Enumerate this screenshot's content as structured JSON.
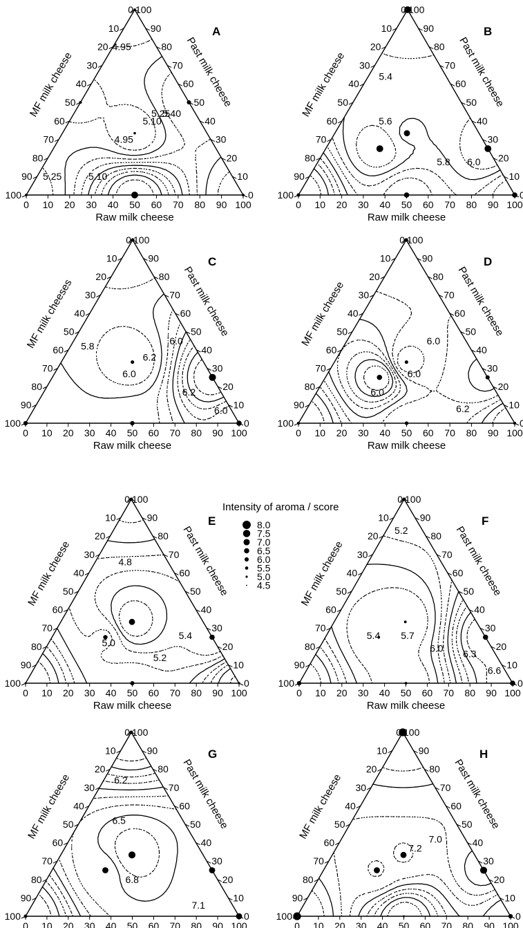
{
  "figure": {
    "legend": {
      "title": "Intensity of aroma / score",
      "entries": [
        "8.0",
        "7.5",
        "7.0",
        "6.5",
        "6.0",
        "5.5",
        "5.0",
        "4.5"
      ]
    }
  },
  "chart_data": [
    {
      "type": "ternary-contour",
      "label": "A",
      "left_axis": "MF milk cheese",
      "right_axis": "Past milk cheese",
      "bottom_axis": "Raw milk cheese",
      "ticks": [
        "0",
        "10",
        "20",
        "30",
        "40",
        "50",
        "60",
        "70",
        "80",
        "90",
        "100"
      ],
      "contour_labels": [
        "5.25",
        "5.10",
        "4.95",
        "4.95",
        "5.10",
        "5.25",
        "5.40"
      ],
      "design_points": [
        {
          "raw": 50,
          "mf": 0,
          "past": 50,
          "score": 5.9
        },
        {
          "raw": 50,
          "mf": 50,
          "past": 0,
          "score": 7.4
        },
        {
          "raw": 0,
          "mf": 50,
          "past": 50,
          "score": 5.1
        },
        {
          "raw": 0,
          "mf": 0,
          "past": 100,
          "score": 5.0
        },
        {
          "raw": 0,
          "mf": 100,
          "past": 0,
          "score": 5.0
        },
        {
          "raw": 100,
          "mf": 0,
          "past": 0,
          "score": 5.0
        },
        {
          "raw": 33.3,
          "mf": 33.3,
          "past": 33.3,
          "score": 4.9
        }
      ]
    },
    {
      "type": "ternary-contour",
      "label": "B",
      "left_axis": "MF milk cheese",
      "right_axis": "Past milk cheese",
      "bottom_axis": "Raw milk cheese",
      "ticks": [
        "0",
        "10",
        "20",
        "30",
        "40",
        "50",
        "60",
        "70",
        "80",
        "90",
        "100"
      ],
      "contour_labels": [
        "5.4",
        "5.6",
        "5.8",
        "6.0"
      ],
      "design_points": [
        {
          "raw": 0,
          "mf": 0,
          "past": 100,
          "score": 7.4
        },
        {
          "raw": 25,
          "mf": 50,
          "past": 25,
          "score": 7.4
        },
        {
          "raw": 75,
          "mf": 0,
          "past": 25,
          "score": 7.4
        },
        {
          "raw": 33.3,
          "mf": 33.3,
          "past": 33.3,
          "score": 7.0
        },
        {
          "raw": 50,
          "mf": 50,
          "past": 0,
          "score": 6.5
        },
        {
          "raw": 100,
          "mf": 0,
          "past": 0,
          "score": 6.5
        },
        {
          "raw": 0,
          "mf": 100,
          "past": 0,
          "score": 5.5
        }
      ]
    },
    {
      "type": "ternary-contour",
      "label": "C",
      "left_axis": "MF milk cheeses",
      "right_axis": "Past milk cheese",
      "bottom_axis": "Raw milk cheese",
      "ticks": [
        "0",
        "10",
        "20",
        "30",
        "40",
        "50",
        "60",
        "70",
        "80",
        "90",
        "100"
      ],
      "contour_labels": [
        "5.8",
        "6.0",
        "6.2",
        "6.2",
        "6.0",
        "6.0"
      ],
      "design_points": [
        {
          "raw": 75,
          "mf": 0,
          "past": 25,
          "score": 7.5
        },
        {
          "raw": 100,
          "mf": 0,
          "past": 0,
          "score": 6.5
        },
        {
          "raw": 50,
          "mf": 50,
          "past": 0,
          "score": 6.0
        },
        {
          "raw": 0,
          "mf": 100,
          "past": 0,
          "score": 6.0
        },
        {
          "raw": 0,
          "mf": 0,
          "past": 100,
          "score": 5.5
        },
        {
          "raw": 33.3,
          "mf": 33.3,
          "past": 33.3,
          "score": 5.5
        }
      ]
    },
    {
      "type": "ternary-contour",
      "label": "D",
      "left_axis": "MF milk cheese",
      "right_axis": "Past milk cheese",
      "bottom_axis": "Raw milk cheese",
      "ticks": [
        "0",
        "10",
        "20",
        "30",
        "40",
        "50",
        "60",
        "70",
        "80",
        "90",
        "100"
      ],
      "contour_labels": [
        "6.0",
        "6.0",
        "6.0",
        "6.2"
      ],
      "design_points": [
        {
          "raw": 25,
          "mf": 50,
          "past": 25,
          "score": 6.5
        },
        {
          "raw": 75,
          "mf": 0,
          "past": 25,
          "score": 5.9
        },
        {
          "raw": 0,
          "mf": 0,
          "past": 100,
          "score": 5.6
        },
        {
          "raw": 50,
          "mf": 50,
          "past": 0,
          "score": 5.6
        },
        {
          "raw": 33.3,
          "mf": 33.3,
          "past": 33.3,
          "score": 5.5
        },
        {
          "raw": 0,
          "mf": 100,
          "past": 0,
          "score": 5.2
        },
        {
          "raw": 100,
          "mf": 0,
          "past": 0,
          "score": 5.2
        }
      ]
    },
    {
      "type": "ternary-contour",
      "label": "E",
      "left_axis": "MF milk cheese",
      "right_axis": "Past milk cheese",
      "bottom_axis": "Raw milk cheese",
      "ticks": [
        "0",
        "10",
        "20",
        "30",
        "40",
        "50",
        "60",
        "70",
        "80",
        "90",
        "100"
      ],
      "contour_labels": [
        "5.4",
        "5.2",
        "5.0",
        "4.8"
      ],
      "design_points": [
        {
          "raw": 33.3,
          "mf": 33.3,
          "past": 33.3,
          "score": 7.0
        },
        {
          "raw": 75,
          "mf": 0,
          "past": 25,
          "score": 6.5
        },
        {
          "raw": 25,
          "mf": 50,
          "past": 25,
          "score": 6.0
        },
        {
          "raw": 50,
          "mf": 50,
          "past": 0,
          "score": 5.9
        },
        {
          "raw": 0,
          "mf": 0,
          "past": 100,
          "score": 5.5
        },
        {
          "raw": 100,
          "mf": 0,
          "past": 0,
          "score": 4.8
        },
        {
          "raw": 0,
          "mf": 100,
          "past": 0,
          "score": 4.6
        }
      ]
    },
    {
      "type": "ternary-contour",
      "label": "F",
      "left_axis": "MF milk cheese",
      "right_axis": "Past milk cheese",
      "bottom_axis": "Raw milk cheese",
      "ticks": [
        "0",
        "10",
        "20",
        "30",
        "40",
        "50",
        "60",
        "70",
        "80",
        "90",
        "100"
      ],
      "contour_labels": [
        "5.4",
        "5.7",
        "6.0",
        "6.3",
        "6.6",
        "5.2"
      ],
      "design_points": [
        {
          "raw": 75,
          "mf": 0,
          "past": 25,
          "score": 6.5
        },
        {
          "raw": 100,
          "mf": 0,
          "past": 0,
          "score": 6.5
        },
        {
          "raw": 0,
          "mf": 100,
          "past": 0,
          "score": 6.0
        },
        {
          "raw": 0,
          "mf": 0,
          "past": 100,
          "score": 5.5
        },
        {
          "raw": 33.3,
          "mf": 33.3,
          "past": 33.3,
          "score": 5.0
        },
        {
          "raw": 25,
          "mf": 50,
          "past": 25,
          "score": 5.0
        },
        {
          "raw": 50,
          "mf": 50,
          "past": 0,
          "score": 5.0
        }
      ]
    },
    {
      "type": "ternary-contour",
      "label": "G",
      "left_axis": "MF milk cheese",
      "right_axis": "Past milk cheese",
      "bottom_axis": "Raw milk cheese",
      "ticks": [
        "0",
        "10",
        "20",
        "30",
        "40",
        "50",
        "60",
        "70",
        "80",
        "90",
        "100"
      ],
      "contour_labels": [
        "6.8",
        "7.1",
        "6.5",
        "6.2"
      ],
      "design_points": [
        {
          "raw": 33.3,
          "mf": 33.3,
          "past": 33.3,
          "score": 7.5
        },
        {
          "raw": 25,
          "mf": 50,
          "past": 25,
          "score": 7.0
        },
        {
          "raw": 75,
          "mf": 0,
          "past": 25,
          "score": 7.0
        },
        {
          "raw": 100,
          "mf": 0,
          "past": 0,
          "score": 7.0
        },
        {
          "raw": 0,
          "mf": 0,
          "past": 100,
          "score": 5.5
        },
        {
          "raw": 0,
          "mf": 100,
          "past": 0,
          "score": 5.5
        }
      ]
    },
    {
      "type": "ternary-contour",
      "label": "H",
      "left_axis": "MF milk cheese",
      "right_axis": "Past milk cheese",
      "bottom_axis": "Raw milk cheese",
      "ticks": [
        "0",
        "10",
        "20",
        "30",
        "40",
        "50",
        "60",
        "70",
        "80",
        "90",
        "100"
      ],
      "contour_labels": [
        "7.2",
        "7.0"
      ],
      "design_points": [
        {
          "raw": 0,
          "mf": 0,
          "past": 100,
          "score": 8.0
        },
        {
          "raw": 0,
          "mf": 100,
          "past": 0,
          "score": 8.0
        },
        {
          "raw": 75,
          "mf": 0,
          "past": 25,
          "score": 7.5
        },
        {
          "raw": 25,
          "mf": 50,
          "past": 25,
          "score": 7.0
        },
        {
          "raw": 33.3,
          "mf": 33.3,
          "past": 33.3,
          "score": 7.0
        },
        {
          "raw": 100,
          "mf": 0,
          "past": 0,
          "score": 6.0
        },
        {
          "raw": 50,
          "mf": 50,
          "past": 0,
          "score": 4.6
        }
      ]
    }
  ]
}
